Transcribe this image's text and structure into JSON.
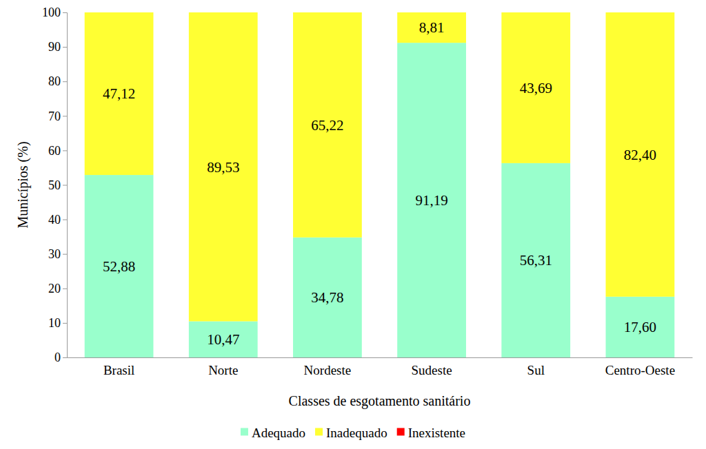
{
  "chart_data": {
    "type": "bar",
    "stacked": true,
    "grid": false,
    "legend": "bottom",
    "x_label": "Classes de esgotamento sanitário",
    "y_label": "Municípios (%)",
    "categories": [
      "Brasil",
      "Norte",
      "Nordeste",
      "Sudeste",
      "Sul",
      "Centro-Oeste"
    ],
    "ylim": [
      0,
      100
    ],
    "yticks": [
      0,
      10,
      20,
      30,
      40,
      50,
      60,
      70,
      80,
      90,
      100
    ],
    "series": [
      {
        "name": "Adequado",
        "color": "#99ffcc",
        "data_labels": true,
        "values": [
          52.88,
          10.47,
          34.78,
          91.19,
          56.31,
          17.6
        ],
        "value_labels": [
          "52,88",
          "10,47",
          "34,78",
          "91,19",
          "56,31",
          "17,60"
        ]
      },
      {
        "name": "Inadequado",
        "color": "#ffff33",
        "data_labels": true,
        "values": [
          47.12,
          89.53,
          65.22,
          8.81,
          43.69,
          82.4
        ],
        "value_labels": [
          "47,12",
          "89,53",
          "65,22",
          "8,81",
          "43,69",
          "82,40"
        ]
      },
      {
        "name": "Inexistente",
        "color": "#ff0000",
        "data_labels": false,
        "values": [
          0,
          0,
          0,
          0,
          0,
          0
        ]
      }
    ]
  }
}
